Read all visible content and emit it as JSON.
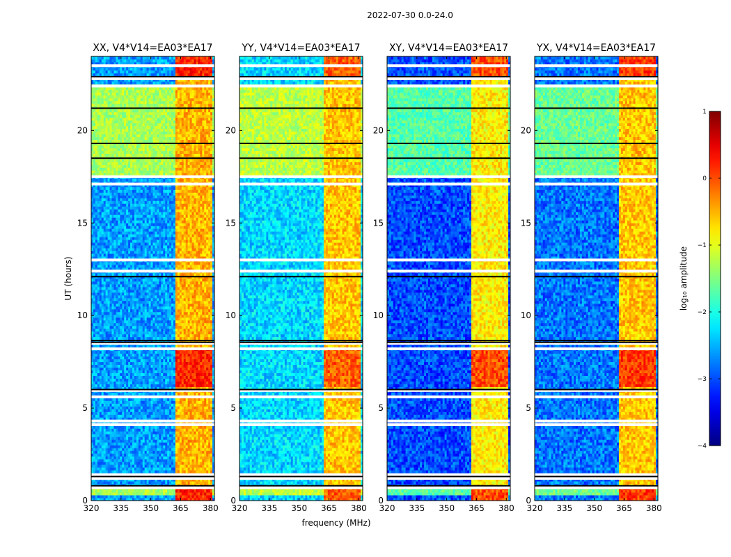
{
  "figure": {
    "suptitle": "2022-07-30 0.0-24.0",
    "xlabel": "frequency (MHz)",
    "ylabel": "UT (hours)",
    "colorbar_label": "log₁₀ amplitude"
  },
  "chart_data": {
    "type": "heatmap",
    "xlim": [
      320,
      382
    ],
    "ylim": [
      0,
      24
    ],
    "xticks": [
      320,
      335,
      350,
      365,
      380
    ],
    "yticks": [
      0,
      5,
      10,
      15,
      20
    ],
    "colorbar": {
      "range": [
        -4,
        1
      ],
      "ticks": [
        1,
        0,
        -1,
        -2,
        -3,
        -4
      ],
      "colormap": "jet"
    },
    "blank_time_rows_hours": [
      0.7,
      1.2,
      1.4,
      4.1,
      4.3,
      5.6,
      5.95,
      8.2,
      8.5,
      12.4,
      13.0,
      17.1,
      17.5,
      22.4,
      22.8,
      23.5
    ],
    "dark_flag_rows_hours": [
      0.8,
      1.3,
      6.0,
      8.55,
      8.65,
      12.1,
      18.5,
      19.3,
      21.2,
      22.9
    ],
    "bright_band_mhz": [
      362,
      381
    ],
    "panels": [
      {
        "title": "XX, V4*V14=EA03*EA17",
        "level_low": -2.6,
        "level_day": -1.3,
        "level_band": -0.5,
        "level_band_peak": 0.2
      },
      {
        "title": "YY, V4*V14=EA03*EA17",
        "level_low": -2.3,
        "level_day": -1.2,
        "level_band": -0.6,
        "level_band_peak": -0.1
      },
      {
        "title": "XY, V4*V14=EA03*EA17",
        "level_low": -3.0,
        "level_day": -1.7,
        "level_band": -0.8,
        "level_band_peak": 0.0
      },
      {
        "title": "YX, V4*V14=EA03*EA17",
        "level_low": -2.8,
        "level_day": -1.6,
        "level_band": -0.6,
        "level_band_peak": 0.1
      }
    ]
  }
}
